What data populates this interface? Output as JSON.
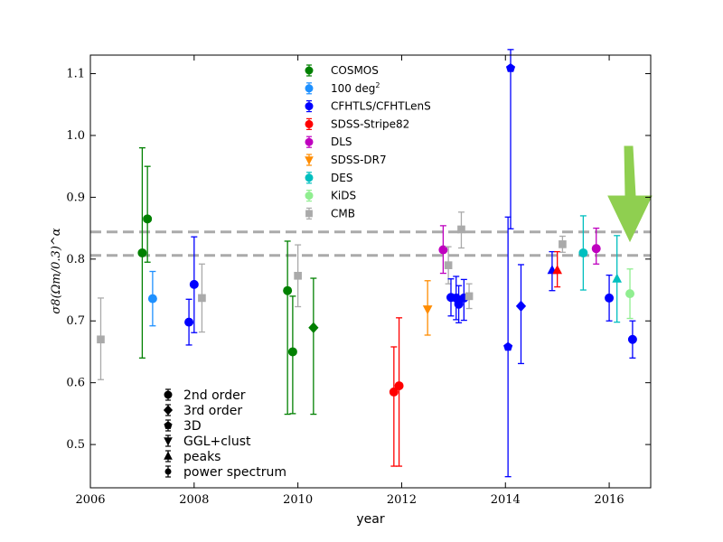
{
  "chart_data": {
    "type": "scatter",
    "xlabel": "year",
    "ylabel": "σ8(Ωm/0.3)^α",
    "xlim": [
      2006,
      2016.8
    ],
    "ylim": [
      0.43,
      1.13
    ],
    "xticks": [
      "2006",
      "2008",
      "2010",
      "2012",
      "2014",
      "2016"
    ],
    "yticks": [
      "0.5",
      "0.6",
      "0.7",
      "0.8",
      "0.9",
      "1.0",
      "1.1"
    ],
    "grid": false,
    "cmb_band": [
      0.806,
      0.844
    ],
    "legend_series": [
      {
        "name": "COSMOS",
        "color": "#008000",
        "marker": "circle"
      },
      {
        "name": "100 deg",
        "sup": "2",
        "color": "#1e90ff",
        "marker": "circle"
      },
      {
        "name": "CFHTLS/CFHTLenS",
        "color": "#0000ff",
        "marker": "circle"
      },
      {
        "name": "SDSS-Stripe82",
        "color": "#ff0000",
        "marker": "circle"
      },
      {
        "name": "DLS",
        "color": "#bf00bf",
        "marker": "circle"
      },
      {
        "name": "SDSS-DR7",
        "color": "#ff8c00",
        "marker": "triangle-down"
      },
      {
        "name": "DES",
        "color": "#00bfbf",
        "marker": "circle"
      },
      {
        "name": "KiDS",
        "color": "#90ee90",
        "marker": "circle"
      },
      {
        "name": "CMB",
        "color": "#aaaaaa",
        "marker": "square"
      }
    ],
    "marker_legend": [
      {
        "label": "2nd order",
        "marker": "circle"
      },
      {
        "label": "3rd order",
        "marker": "diamond"
      },
      {
        "label": "3D",
        "marker": "pentagon"
      },
      {
        "label": "GGL+clust",
        "marker": "triangle-down"
      },
      {
        "label": "peaks",
        "marker": "triangle-up"
      },
      {
        "label": "power spectrum",
        "marker": "small-circle"
      }
    ],
    "points": [
      {
        "x": 2006.2,
        "y": 0.67,
        "err_lo": 0.065,
        "err_hi": 0.067,
        "color": "#aaaaaa",
        "marker": "square"
      },
      {
        "x": 2007.0,
        "y": 0.81,
        "err_lo": 0.17,
        "err_hi": 0.17,
        "color": "#008000",
        "marker": "circle"
      },
      {
        "x": 2007.1,
        "y": 0.865,
        "err_lo": 0.07,
        "err_hi": 0.085,
        "color": "#008000",
        "marker": "circle"
      },
      {
        "x": 2007.2,
        "y": 0.736,
        "err_lo": 0.044,
        "err_hi": 0.044,
        "color": "#1e90ff",
        "marker": "circle"
      },
      {
        "x": 2007.9,
        "y": 0.698,
        "err_lo": 0.037,
        "err_hi": 0.037,
        "color": "#0000ff",
        "marker": "circle"
      },
      {
        "x": 2008.0,
        "y": 0.759,
        "err_lo": 0.078,
        "err_hi": 0.077,
        "color": "#0000ff",
        "marker": "circle"
      },
      {
        "x": 2008.15,
        "y": 0.737,
        "err_lo": 0.055,
        "err_hi": 0.055,
        "color": "#aaaaaa",
        "marker": "square"
      },
      {
        "x": 2009.8,
        "y": 0.749,
        "err_lo": 0.2,
        "err_hi": 0.08,
        "color": "#008000",
        "marker": "circle"
      },
      {
        "x": 2009.9,
        "y": 0.65,
        "err_lo": 0.1,
        "err_hi": 0.09,
        "color": "#008000",
        "marker": "circle"
      },
      {
        "x": 2010.0,
        "y": 0.773,
        "err_lo": 0.05,
        "err_hi": 0.05,
        "color": "#aaaaaa",
        "marker": "square"
      },
      {
        "x": 2010.3,
        "y": 0.689,
        "err_lo": 0.14,
        "err_hi": 0.08,
        "color": "#008000",
        "marker": "diamond"
      },
      {
        "x": 2011.85,
        "y": 0.585,
        "err_lo": 0.12,
        "err_hi": 0.073,
        "color": "#ff0000",
        "marker": "circle"
      },
      {
        "x": 2011.95,
        "y": 0.595,
        "err_lo": 0.13,
        "err_hi": 0.11,
        "color": "#ff0000",
        "marker": "circle"
      },
      {
        "x": 2012.5,
        "y": 0.719,
        "err_lo": 0.042,
        "err_hi": 0.046,
        "color": "#ff8c00",
        "marker": "triangle-down"
      },
      {
        "x": 2012.8,
        "y": 0.815,
        "err_lo": 0.038,
        "err_hi": 0.039,
        "color": "#bf00bf",
        "marker": "circle"
      },
      {
        "x": 2012.9,
        "y": 0.79,
        "err_lo": 0.03,
        "err_hi": 0.03,
        "color": "#aaaaaa",
        "marker": "square"
      },
      {
        "x": 2012.95,
        "y": 0.738,
        "err_lo": 0.03,
        "err_hi": 0.03,
        "color": "#0000ff",
        "marker": "circle"
      },
      {
        "x": 2013.05,
        "y": 0.737,
        "err_lo": 0.035,
        "err_hi": 0.035,
        "color": "#0000ff",
        "marker": "circle"
      },
      {
        "x": 2013.1,
        "y": 0.727,
        "err_lo": 0.03,
        "err_hi": 0.03,
        "color": "#0000ff",
        "marker": "circle"
      },
      {
        "x": 2013.2,
        "y": 0.737,
        "err_lo": 0.036,
        "err_hi": 0.03,
        "color": "#0000ff",
        "marker": "circle"
      },
      {
        "x": 2013.15,
        "y": 0.848,
        "err_lo": 0.03,
        "err_hi": 0.028,
        "color": "#aaaaaa",
        "marker": "square"
      },
      {
        "x": 2013.3,
        "y": 0.74,
        "err_lo": 0.02,
        "err_hi": 0.02,
        "color": "#aaaaaa",
        "marker": "square"
      },
      {
        "x": 2014.05,
        "y": 0.658,
        "err_lo": 0.21,
        "err_hi": 0.21,
        "color": "#0000ff",
        "marker": "pentagon"
      },
      {
        "x": 2014.1,
        "y": 1.109,
        "err_lo": 0.26,
        "err_hi": 0.03,
        "color": "#0000ff",
        "marker": "pentagon"
      },
      {
        "x": 2014.3,
        "y": 0.724,
        "err_lo": 0.093,
        "err_hi": 0.067,
        "color": "#0000ff",
        "marker": "diamond"
      },
      {
        "x": 2014.9,
        "y": 0.782,
        "err_lo": 0.033,
        "err_hi": 0.03,
        "color": "#0000ff",
        "marker": "triangle-up"
      },
      {
        "x": 2015.0,
        "y": 0.782,
        "err_lo": 0.027,
        "err_hi": 0.03,
        "color": "#ff0000",
        "marker": "triangle-up"
      },
      {
        "x": 2015.1,
        "y": 0.824,
        "err_lo": 0.013,
        "err_hi": 0.013,
        "color": "#aaaaaa",
        "marker": "square"
      },
      {
        "x": 2015.5,
        "y": 0.81,
        "err_lo": 0.06,
        "err_hi": 0.06,
        "color": "#00bfbf",
        "marker": "circle"
      },
      {
        "x": 2015.75,
        "y": 0.817,
        "err_lo": 0.025,
        "err_hi": 0.033,
        "color": "#bf00bf",
        "marker": "circle"
      },
      {
        "x": 2016.0,
        "y": 0.737,
        "err_lo": 0.037,
        "err_hi": 0.037,
        "color": "#0000ff",
        "marker": "circle"
      },
      {
        "x": 2016.15,
        "y": 0.768,
        "err_lo": 0.07,
        "err_hi": 0.07,
        "color": "#00bfbf",
        "marker": "triangle-up"
      },
      {
        "x": 2016.4,
        "y": 0.744,
        "err_lo": 0.04,
        "err_hi": 0.04,
        "color": "#90ee90",
        "marker": "circle"
      },
      {
        "x": 2016.45,
        "y": 0.67,
        "err_lo": 0.03,
        "err_hi": 0.03,
        "color": "#0000ff",
        "marker": "circle"
      }
    ],
    "annotation_arrow_color": "#8fcf50"
  }
}
